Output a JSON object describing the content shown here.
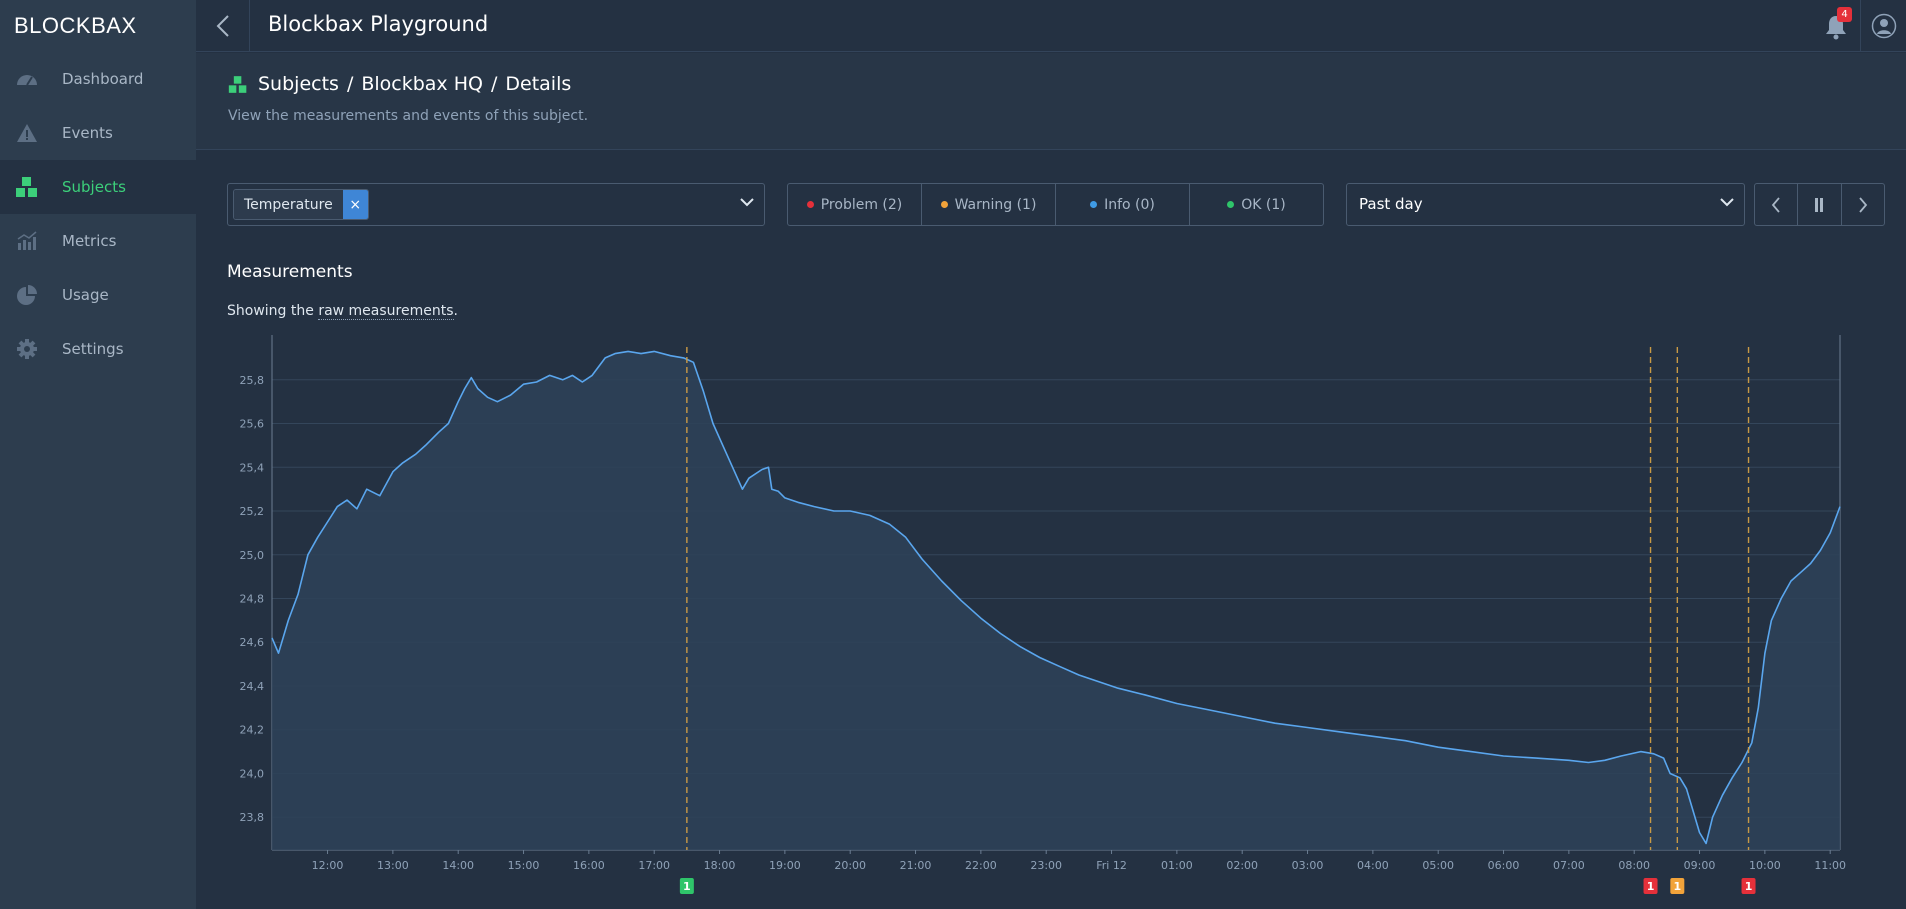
{
  "app": {
    "logo": "BLOCKBAX",
    "title": "Blockbax Playground",
    "notification_count": "4"
  },
  "sidebar": {
    "items": [
      {
        "label": "Dashboard",
        "icon": "gauge-icon",
        "active": false
      },
      {
        "label": "Events",
        "icon": "warning-triangle-icon",
        "active": false
      },
      {
        "label": "Subjects",
        "icon": "subjects-blocks-icon",
        "active": true
      },
      {
        "label": "Metrics",
        "icon": "bar-chart-icon",
        "active": false
      },
      {
        "label": "Usage",
        "icon": "pie-chart-icon",
        "active": false
      },
      {
        "label": "Settings",
        "icon": "gear-icon",
        "active": false
      }
    ]
  },
  "header": {
    "breadcrumb": [
      "Subjects",
      "/",
      "Blockbax HQ",
      "/",
      "Details"
    ],
    "subtitle": "View the measurements and events of this subject."
  },
  "controls": {
    "metric_tag": "Temperature",
    "filters": [
      {
        "label": "Problem (2)",
        "color": "#e5303a"
      },
      {
        "label": "Warning (1)",
        "color": "#f2a33a"
      },
      {
        "label": "Info (0)",
        "color": "#3f9be5"
      },
      {
        "label": "OK (1)",
        "color": "#2fc56a"
      }
    ],
    "period": "Past day"
  },
  "measurements": {
    "title": "Measurements",
    "showing_prefix": "Showing the ",
    "showing_link": "raw measurements",
    "showing_suffix": "."
  },
  "colors": {
    "line": "#5aa6ee",
    "problem": "#e5303a",
    "warning": "#f2a33a",
    "ok": "#2fc56a",
    "event_line": "#c99a45"
  },
  "chart_data": {
    "type": "area",
    "title": "",
    "xlabel": "",
    "ylabel": "",
    "ylim": [
      23.65,
      25.95
    ],
    "y_ticks": [
      "25,8",
      "25,6",
      "25,4",
      "25,2",
      "25,0",
      "24,8",
      "24,6",
      "24,4",
      "24,2",
      "24,0",
      "23,8"
    ],
    "x_ticks": [
      "12:00",
      "13:00",
      "14:00",
      "15:00",
      "16:00",
      "17:00",
      "18:00",
      "19:00",
      "20:00",
      "21:00",
      "22:00",
      "23:00",
      "Fri 12",
      "01:00",
      "02:00",
      "03:00",
      "04:00",
      "05:00",
      "06:00",
      "07:00",
      "08:00",
      "09:00",
      "10:00",
      "11:00"
    ],
    "x_range_hours": [
      11.15,
      35.15
    ],
    "series": [
      {
        "points": [
          [
            11.15,
            24.62
          ],
          [
            11.25,
            24.55
          ],
          [
            11.4,
            24.7
          ],
          [
            11.55,
            24.82
          ],
          [
            11.7,
            25.0
          ],
          [
            11.85,
            25.08
          ],
          [
            12.0,
            25.15
          ],
          [
            12.15,
            25.22
          ],
          [
            12.3,
            25.25
          ],
          [
            12.45,
            25.21
          ],
          [
            12.6,
            25.3
          ],
          [
            12.8,
            25.27
          ],
          [
            13.0,
            25.38
          ],
          [
            13.15,
            25.42
          ],
          [
            13.35,
            25.46
          ],
          [
            13.5,
            25.5
          ],
          [
            13.7,
            25.56
          ],
          [
            13.85,
            25.6
          ],
          [
            14.0,
            25.7
          ],
          [
            14.1,
            25.76
          ],
          [
            14.2,
            25.81
          ],
          [
            14.3,
            25.76
          ],
          [
            14.45,
            25.72
          ],
          [
            14.6,
            25.7
          ],
          [
            14.8,
            25.73
          ],
          [
            15.0,
            25.78
          ],
          [
            15.2,
            25.79
          ],
          [
            15.4,
            25.82
          ],
          [
            15.6,
            25.8
          ],
          [
            15.75,
            25.82
          ],
          [
            15.9,
            25.79
          ],
          [
            16.05,
            25.82
          ],
          [
            16.25,
            25.9
          ],
          [
            16.4,
            25.92
          ],
          [
            16.6,
            25.93
          ],
          [
            16.8,
            25.92
          ],
          [
            17.0,
            25.93
          ],
          [
            17.25,
            25.91
          ],
          [
            17.45,
            25.9
          ],
          [
            17.6,
            25.88
          ],
          [
            17.75,
            25.75
          ],
          [
            17.9,
            25.6
          ],
          [
            18.05,
            25.5
          ],
          [
            18.2,
            25.4
          ],
          [
            18.35,
            25.3
          ],
          [
            18.45,
            25.35
          ],
          [
            18.65,
            25.39
          ],
          [
            18.75,
            25.4
          ],
          [
            18.8,
            25.3
          ],
          [
            18.9,
            25.29
          ],
          [
            19.0,
            25.26
          ],
          [
            19.2,
            25.24
          ],
          [
            19.45,
            25.22
          ],
          [
            19.75,
            25.2
          ],
          [
            20.0,
            25.2
          ],
          [
            20.3,
            25.18
          ],
          [
            20.6,
            25.14
          ],
          [
            20.85,
            25.08
          ],
          [
            21.1,
            24.98
          ],
          [
            21.4,
            24.88
          ],
          [
            21.7,
            24.79
          ],
          [
            22.0,
            24.71
          ],
          [
            22.3,
            24.64
          ],
          [
            22.6,
            24.58
          ],
          [
            22.9,
            24.53
          ],
          [
            23.2,
            24.49
          ],
          [
            23.5,
            24.45
          ],
          [
            23.8,
            24.42
          ],
          [
            24.1,
            24.39
          ],
          [
            24.5,
            24.36
          ],
          [
            25.0,
            24.32
          ],
          [
            25.5,
            24.29
          ],
          [
            26.0,
            24.26
          ],
          [
            26.5,
            24.23
          ],
          [
            27.0,
            24.21
          ],
          [
            27.5,
            24.19
          ],
          [
            28.0,
            24.17
          ],
          [
            28.5,
            24.15
          ],
          [
            29.0,
            24.12
          ],
          [
            29.5,
            24.1
          ],
          [
            30.0,
            24.08
          ],
          [
            30.5,
            24.07
          ],
          [
            31.0,
            24.06
          ],
          [
            31.3,
            24.05
          ],
          [
            31.55,
            24.06
          ],
          [
            31.8,
            24.08
          ],
          [
            32.1,
            24.1
          ],
          [
            32.3,
            24.09
          ],
          [
            32.45,
            24.07
          ],
          [
            32.55,
            24.0
          ],
          [
            32.7,
            23.98
          ],
          [
            32.8,
            23.93
          ],
          [
            32.9,
            23.83
          ],
          [
            33.0,
            23.73
          ],
          [
            33.1,
            23.68
          ],
          [
            33.2,
            23.8
          ],
          [
            33.35,
            23.9
          ],
          [
            33.5,
            23.98
          ],
          [
            33.65,
            24.05
          ],
          [
            33.8,
            24.14
          ],
          [
            33.9,
            24.3
          ],
          [
            34.0,
            24.55
          ],
          [
            34.1,
            24.7
          ],
          [
            34.25,
            24.8
          ],
          [
            34.4,
            24.88
          ],
          [
            34.55,
            24.92
          ],
          [
            34.7,
            24.96
          ],
          [
            34.85,
            25.02
          ],
          [
            35.0,
            25.1
          ],
          [
            35.15,
            25.22
          ]
        ]
      }
    ],
    "event_markers": [
      {
        "hour": 17.5,
        "severity": "ok",
        "count": "1"
      },
      {
        "hour": 32.25,
        "severity": "problem",
        "count": "1"
      },
      {
        "hour": 32.66,
        "severity": "warning",
        "count": "1"
      },
      {
        "hour": 33.75,
        "severity": "problem",
        "count": "1"
      }
    ]
  }
}
